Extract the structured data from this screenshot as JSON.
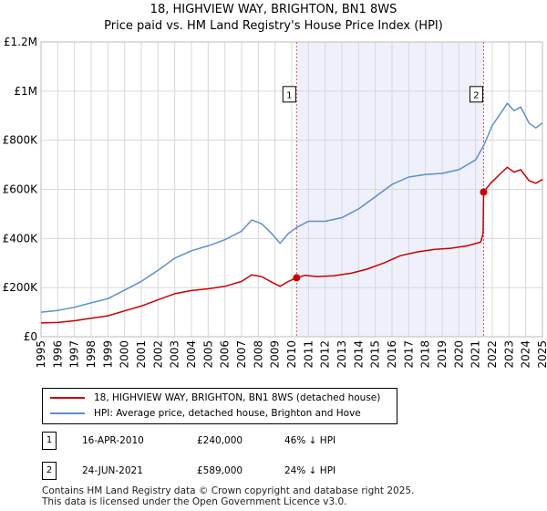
{
  "title_line1": "18, HIGHVIEW WAY, BRIGHTON, BN1 8WS",
  "title_line2": "Price paid vs. HM Land Registry's House Price Index (HPI)",
  "colors": {
    "price": "#cc0000",
    "hpi": "#5b8fd0",
    "shade": "#eef0fb",
    "grid": "#d8d8d8",
    "marker_line": "#e05050"
  },
  "chart_data": {
    "type": "line",
    "xlim": [
      1995,
      2025
    ],
    "ylim": [
      0,
      1200000
    ],
    "x_ticks": [
      "1995",
      "1996",
      "1997",
      "1998",
      "1999",
      "2000",
      "2001",
      "2002",
      "2003",
      "2004",
      "2005",
      "2006",
      "2007",
      "2008",
      "2009",
      "2010",
      "2011",
      "2012",
      "2013",
      "2014",
      "2015",
      "2016",
      "2017",
      "2018",
      "2019",
      "2020",
      "2021",
      "2022",
      "2023",
      "2024",
      "2025"
    ],
    "y_ticks": [
      {
        "value": 0,
        "label": "£0"
      },
      {
        "value": 200000,
        "label": "£200K"
      },
      {
        "value": 400000,
        "label": "£400K"
      },
      {
        "value": 600000,
        "label": "£600K"
      },
      {
        "value": 800000,
        "label": "£800K"
      },
      {
        "value": 1000000,
        "label": "£1M"
      },
      {
        "value": 1200000,
        "label": "£1.2M"
      }
    ],
    "shaded_range": [
      2010.29,
      2021.48
    ],
    "series": [
      {
        "name": "18, HIGHVIEW WAY, BRIGHTON, BN1 8WS (detached house)",
        "color": "#cc0000",
        "points": [
          [
            1995,
            56000
          ],
          [
            1996,
            58000
          ],
          [
            1997,
            65000
          ],
          [
            1998,
            75000
          ],
          [
            1999,
            85000
          ],
          [
            2000,
            105000
          ],
          [
            2001,
            125000
          ],
          [
            2002,
            150000
          ],
          [
            2003,
            175000
          ],
          [
            2004,
            188000
          ],
          [
            2005,
            195000
          ],
          [
            2006,
            205000
          ],
          [
            2007,
            225000
          ],
          [
            2007.6,
            252000
          ],
          [
            2008.2,
            245000
          ],
          [
            2008.8,
            222000
          ],
          [
            2009.3,
            205000
          ],
          [
            2009.8,
            225000
          ],
          [
            2010.29,
            240000
          ],
          [
            2010.8,
            250000
          ],
          [
            2011.5,
            245000
          ],
          [
            2012.5,
            248000
          ],
          [
            2013.5,
            258000
          ],
          [
            2014.5,
            275000
          ],
          [
            2015.5,
            300000
          ],
          [
            2016.5,
            330000
          ],
          [
            2017.5,
            345000
          ],
          [
            2018.5,
            355000
          ],
          [
            2019.5,
            360000
          ],
          [
            2020.5,
            370000
          ],
          [
            2021.3,
            385000
          ],
          [
            2021.45,
            420000
          ],
          [
            2021.48,
            589000
          ],
          [
            2021.9,
            625000
          ],
          [
            2022.5,
            665000
          ],
          [
            2022.9,
            690000
          ],
          [
            2023.3,
            670000
          ],
          [
            2023.7,
            680000
          ],
          [
            2024.2,
            635000
          ],
          [
            2024.6,
            625000
          ],
          [
            2025,
            640000
          ]
        ]
      },
      {
        "name": "HPI: Average price, detached house, Brighton and Hove",
        "color": "#5b8fd0",
        "points": [
          [
            1995,
            100000
          ],
          [
            1996,
            107000
          ],
          [
            1997,
            120000
          ],
          [
            1998,
            138000
          ],
          [
            1999,
            155000
          ],
          [
            2000,
            190000
          ],
          [
            2001,
            225000
          ],
          [
            2002,
            270000
          ],
          [
            2003,
            320000
          ],
          [
            2004,
            350000
          ],
          [
            2005,
            370000
          ],
          [
            2006,
            395000
          ],
          [
            2007,
            430000
          ],
          [
            2007.6,
            475000
          ],
          [
            2008.2,
            460000
          ],
          [
            2008.8,
            420000
          ],
          [
            2009.3,
            380000
          ],
          [
            2009.8,
            420000
          ],
          [
            2010.3,
            445000
          ],
          [
            2011,
            470000
          ],
          [
            2012,
            470000
          ],
          [
            2013,
            485000
          ],
          [
            2014,
            520000
          ],
          [
            2015,
            570000
          ],
          [
            2016,
            620000
          ],
          [
            2017,
            650000
          ],
          [
            2018,
            660000
          ],
          [
            2019,
            665000
          ],
          [
            2020,
            680000
          ],
          [
            2021,
            720000
          ],
          [
            2021.5,
            780000
          ],
          [
            2022,
            860000
          ],
          [
            2022.5,
            910000
          ],
          [
            2022.9,
            950000
          ],
          [
            2023.3,
            920000
          ],
          [
            2023.7,
            935000
          ],
          [
            2024.2,
            870000
          ],
          [
            2024.6,
            850000
          ],
          [
            2025,
            870000
          ]
        ]
      }
    ],
    "markers": [
      {
        "label": "1",
        "x": 2010.29,
        "y": 240000
      },
      {
        "label": "2",
        "x": 2021.48,
        "y": 589000
      }
    ]
  },
  "legend": {
    "series1": "18, HIGHVIEW WAY, BRIGHTON, BN1 8WS (detached house)",
    "series2": "HPI: Average price, detached house, Brighton and Hove"
  },
  "transactions": [
    {
      "num": "1",
      "date": "16-APR-2010",
      "price": "£240,000",
      "hpi": "46% ↓ HPI"
    },
    {
      "num": "2",
      "date": "24-JUN-2021",
      "price": "£589,000",
      "hpi": "24% ↓ HPI"
    }
  ],
  "footer_line1": "Contains HM Land Registry data © Crown copyright and database right 2025.",
  "footer_line2": "This data is licensed under the Open Government Licence v3.0."
}
